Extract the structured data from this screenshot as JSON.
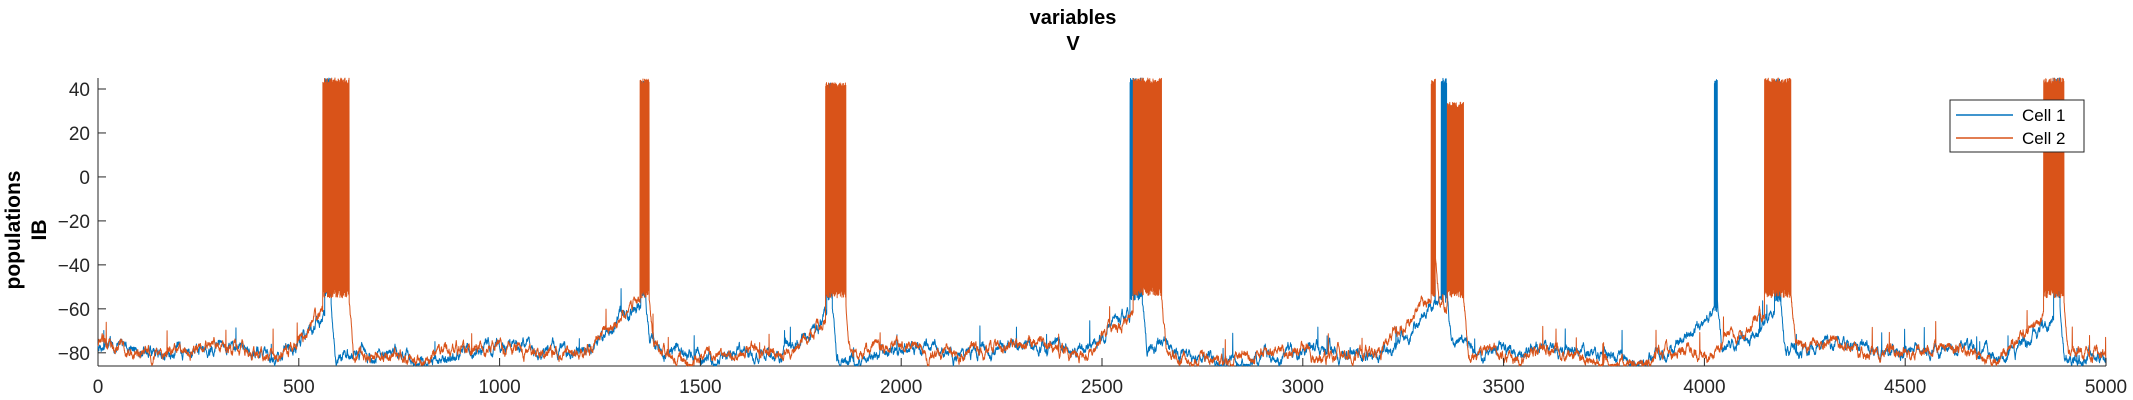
{
  "chart_data": {
    "type": "line",
    "title": [
      "variables",
      "V"
    ],
    "ylabel": [
      "populations",
      "IB"
    ],
    "xlabel": "",
    "xlim": [
      0,
      5000
    ],
    "ylim": [
      -86,
      45
    ],
    "x_ticks": [
      0,
      500,
      1000,
      1500,
      2000,
      2500,
      3000,
      3500,
      4000,
      4500,
      5000
    ],
    "y_ticks": [
      40,
      20,
      0,
      -20,
      -40,
      -60,
      -80
    ],
    "legend": {
      "placement": "top-right"
    },
    "series": [
      {
        "name": "Cell 1",
        "color": "#0072BD",
        "baseline": -80,
        "bursts": [
          {
            "start": 565,
            "end": 580,
            "peak": 45,
            "trough": -55
          },
          {
            "start": 1352,
            "end": 1362,
            "peak": 44,
            "trough": -55
          },
          {
            "start": 1815,
            "end": 1828,
            "peak": 43,
            "trough": -56
          },
          {
            "start": 2570,
            "end": 2600,
            "peak": 45,
            "trough": -56
          },
          {
            "start": 3345,
            "end": 3358,
            "peak": 45,
            "trough": -57
          },
          {
            "start": 4025,
            "end": 4032,
            "peak": 45,
            "trough": -62
          },
          {
            "start": 4175,
            "end": 4190,
            "peak": 45,
            "trough": -57
          },
          {
            "start": 4870,
            "end": 4885,
            "peak": 45,
            "trough": -55
          }
        ]
      },
      {
        "name": "Cell 2",
        "color": "#D95319",
        "baseline": -80,
        "bursts": [
          {
            "start": 560,
            "end": 625,
            "peak": 45,
            "trough": -55
          },
          {
            "start": 1350,
            "end": 1372,
            "peak": 45,
            "trough": -55
          },
          {
            "start": 1812,
            "end": 1862,
            "peak": 43,
            "trough": -55
          },
          {
            "start": 2578,
            "end": 2648,
            "peak": 45,
            "trough": -54
          },
          {
            "start": 3320,
            "end": 3330,
            "peak": 45,
            "trough": -55
          },
          {
            "start": 3360,
            "end": 3400,
            "peak": 34,
            "trough": -55
          },
          {
            "start": 4150,
            "end": 4215,
            "peak": 45,
            "trough": -55
          },
          {
            "start": 4845,
            "end": 4895,
            "peak": 45,
            "trough": -55
          }
        ]
      }
    ]
  }
}
